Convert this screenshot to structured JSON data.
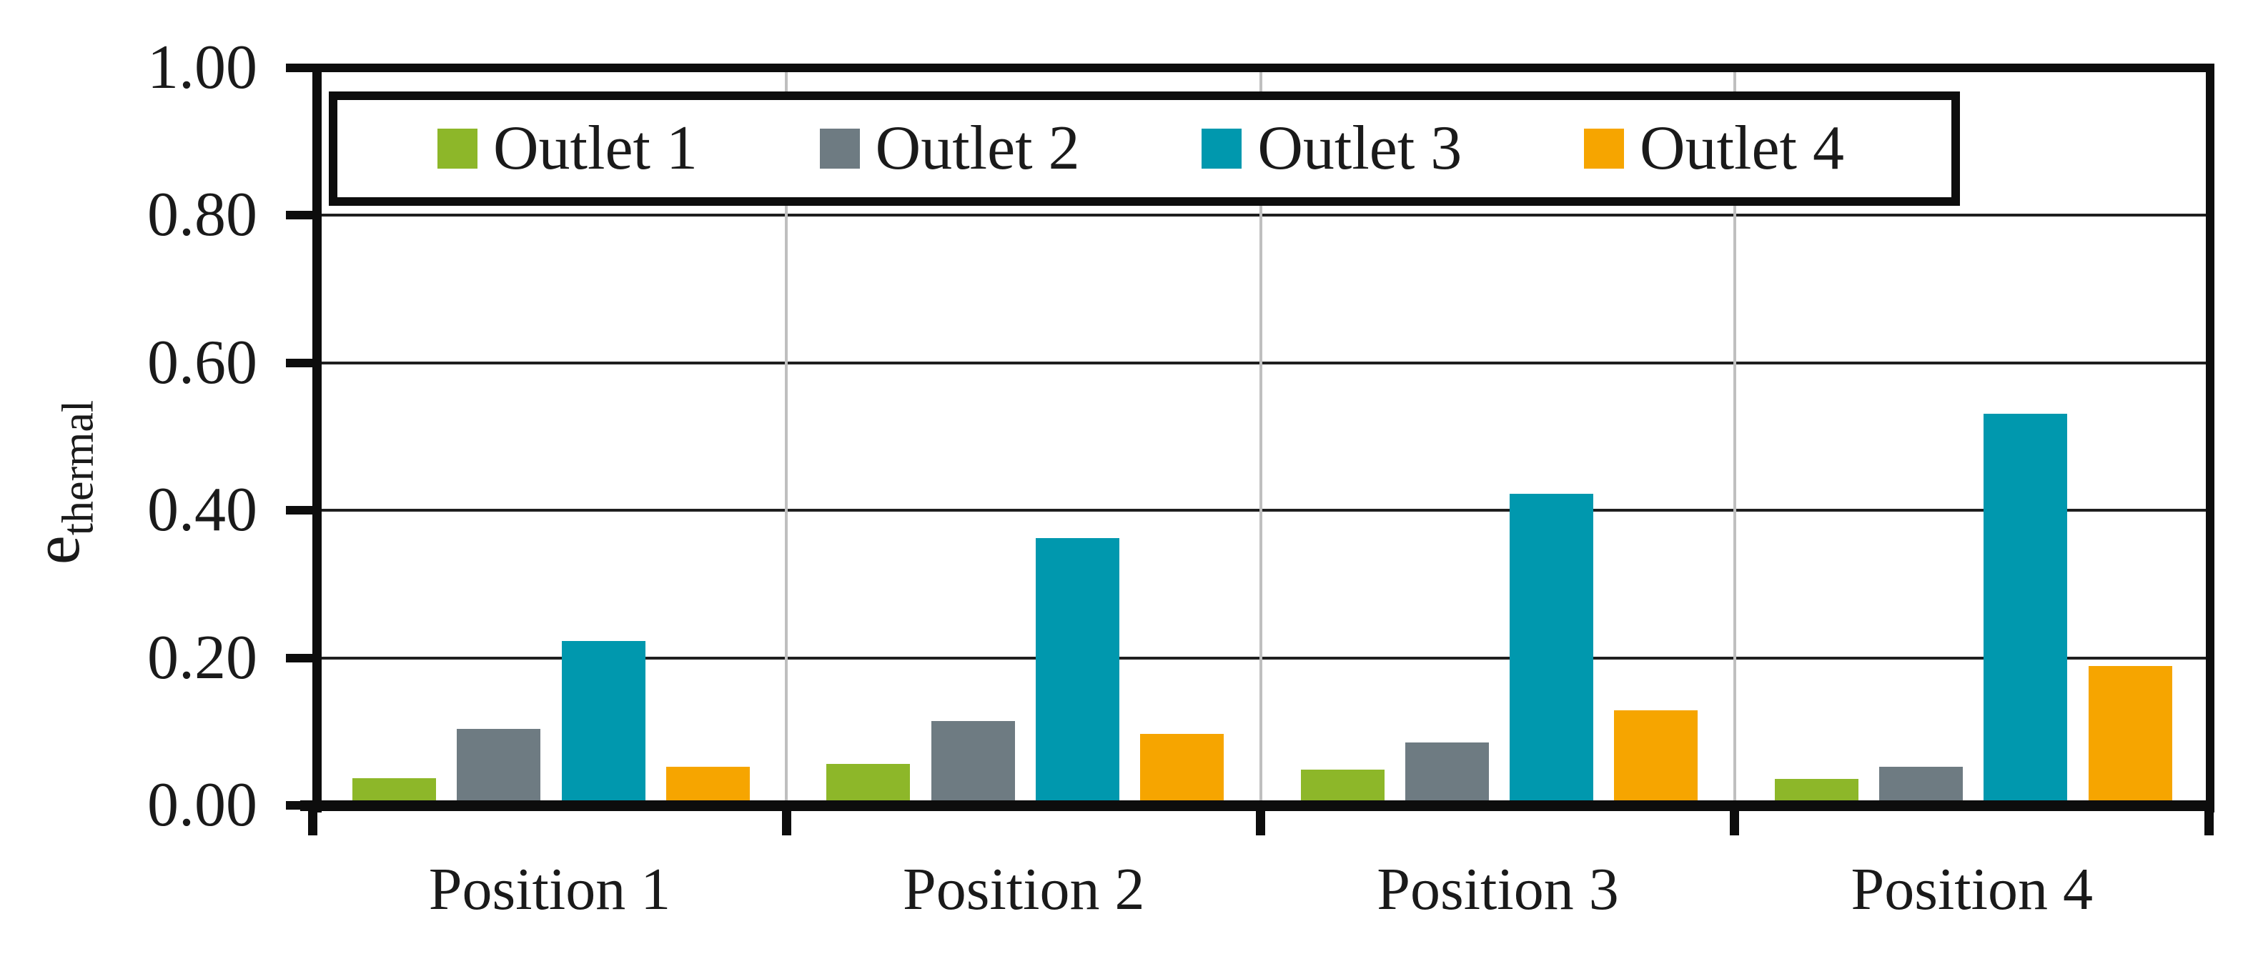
{
  "chart_data": {
    "type": "bar",
    "title": "",
    "categories": [
      "Position 1",
      "Position 2",
      "Position 3",
      "Position 4"
    ],
    "series": [
      {
        "name": "Outlet 1",
        "color": "#8DB729",
        "values": [
          0.037,
          0.056,
          0.048,
          0.036
        ]
      },
      {
        "name": "Outlet 2",
        "color": "#6E7B82",
        "values": [
          0.104,
          0.114,
          0.085,
          0.052
        ]
      },
      {
        "name": "Outlet 3",
        "color": "#0098AE",
        "values": [
          0.223,
          0.362,
          0.422,
          0.531
        ]
      },
      {
        "name": "Outlet 4",
        "color": "#F6A500",
        "values": [
          0.052,
          0.097,
          0.129,
          0.189
        ]
      }
    ],
    "ylabel_main": "e",
    "ylabel_sub": "thermal",
    "xlabel": "",
    "yticks": [
      "0.00",
      "0.20",
      "0.40",
      "0.60",
      "0.80",
      "1.00"
    ],
    "ylim": [
      0,
      1
    ],
    "grid": "horizontal major lines every 0.20; light vertical lines at category boundaries",
    "legend_position": "top inside plot, boxed",
    "colors": {
      "axis": "#0d0d0d",
      "major_gridline": "#1f1f1f",
      "category_gridline": "#bfbfbf",
      "background": "#ffffff"
    }
  }
}
